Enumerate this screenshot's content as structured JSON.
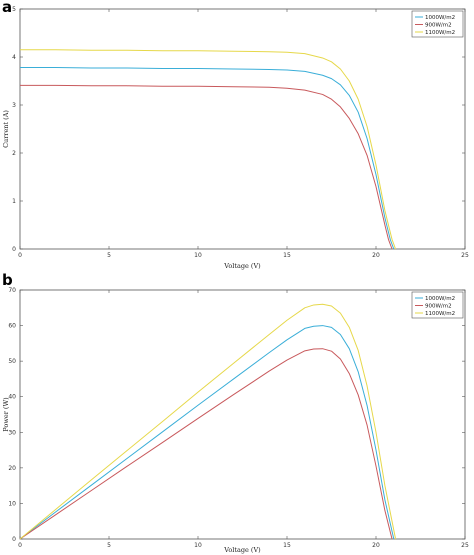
{
  "chart_data": [
    {
      "panel": "a",
      "type": "line",
      "title": "",
      "xlabel": "Voltage (V)",
      "ylabel": "Current (A)",
      "xlim": [
        0,
        25
      ],
      "ylim": [
        0,
        5
      ],
      "xticks": [
        0,
        5,
        10,
        15,
        20,
        25
      ],
      "yticks": [
        0,
        1,
        2,
        3,
        4,
        5
      ],
      "grid": false,
      "legend": "top-right",
      "series": [
        {
          "name": "1000W/m2",
          "color": "#3aaed8",
          "x": [
            0,
            2,
            4,
            6,
            8,
            10,
            12,
            14,
            15,
            16,
            17,
            17.5,
            18,
            18.5,
            19,
            19.5,
            20,
            20.5,
            20.8,
            21.0
          ],
          "y": [
            3.78,
            3.78,
            3.77,
            3.77,
            3.76,
            3.76,
            3.75,
            3.74,
            3.73,
            3.7,
            3.62,
            3.55,
            3.42,
            3.2,
            2.85,
            2.3,
            1.55,
            0.65,
            0.2,
            0
          ]
        },
        {
          "name": "900W/m2",
          "color": "#c8595c",
          "x": [
            0,
            2,
            4,
            6,
            8,
            10,
            12,
            14,
            15,
            16,
            17,
            17.5,
            18,
            18.5,
            19,
            19.5,
            20,
            20.5,
            20.7,
            20.9
          ],
          "y": [
            3.41,
            3.41,
            3.4,
            3.4,
            3.39,
            3.39,
            3.38,
            3.37,
            3.35,
            3.31,
            3.22,
            3.12,
            2.96,
            2.72,
            2.4,
            1.95,
            1.3,
            0.5,
            0.2,
            0
          ]
        },
        {
          "name": "1100W/m2",
          "color": "#e6d84a",
          "x": [
            0,
            2,
            4,
            6,
            8,
            10,
            12,
            14,
            15,
            16,
            17,
            17.5,
            18,
            18.5,
            19,
            19.5,
            20,
            20.5,
            20.9,
            21.1
          ],
          "y": [
            4.15,
            4.15,
            4.14,
            4.14,
            4.13,
            4.13,
            4.12,
            4.11,
            4.1,
            4.07,
            3.98,
            3.9,
            3.75,
            3.5,
            3.12,
            2.55,
            1.75,
            0.8,
            0.2,
            0
          ]
        }
      ]
    },
    {
      "panel": "b",
      "type": "line",
      "title": "",
      "xlabel": "Voltage (V)",
      "ylabel": "Power (W)",
      "xlim": [
        0,
        25
      ],
      "ylim": [
        0,
        70
      ],
      "xticks": [
        0,
        5,
        10,
        15,
        20,
        25
      ],
      "yticks": [
        0,
        10,
        20,
        30,
        40,
        50,
        60,
        70
      ],
      "grid": false,
      "legend": "top-right",
      "series": [
        {
          "name": "1000W/m2",
          "color": "#3aaed8",
          "x": [
            0,
            2,
            4,
            6,
            8,
            10,
            12,
            14,
            15,
            16,
            16.5,
            17,
            17.5,
            18,
            18.5,
            19,
            19.5,
            20,
            20.5,
            21.0
          ],
          "y": [
            0,
            7.6,
            15.1,
            22.6,
            30.1,
            37.6,
            45,
            52.4,
            56,
            59.2,
            59.8,
            60,
            59.5,
            57.5,
            53.5,
            47,
            37.5,
            25,
            11,
            0
          ]
        },
        {
          "name": "900W/m2",
          "color": "#c8595c",
          "x": [
            0,
            2,
            4,
            6,
            8,
            10,
            12,
            14,
            15,
            16,
            16.5,
            17,
            17.5,
            18,
            18.5,
            19,
            19.5,
            20,
            20.5,
            20.9
          ],
          "y": [
            0,
            6.8,
            13.6,
            20.4,
            27.1,
            33.9,
            40.6,
            47.2,
            50.3,
            52.9,
            53.4,
            53.5,
            52.8,
            50.6,
            46.5,
            40.5,
            32,
            20.5,
            8,
            0
          ]
        },
        {
          "name": "1100W/m2",
          "color": "#e6d84a",
          "x": [
            0,
            2,
            4,
            6,
            8,
            10,
            12,
            14,
            15,
            16,
            16.5,
            17,
            17.5,
            18,
            18.5,
            19,
            19.5,
            20,
            20.5,
            21.1
          ],
          "y": [
            0,
            8.3,
            16.6,
            24.8,
            33,
            41.3,
            49.4,
            57.5,
            61.5,
            65,
            65.8,
            66,
            65.5,
            63.5,
            59.5,
            53,
            43,
            30,
            15,
            0
          ]
        }
      ]
    }
  ]
}
